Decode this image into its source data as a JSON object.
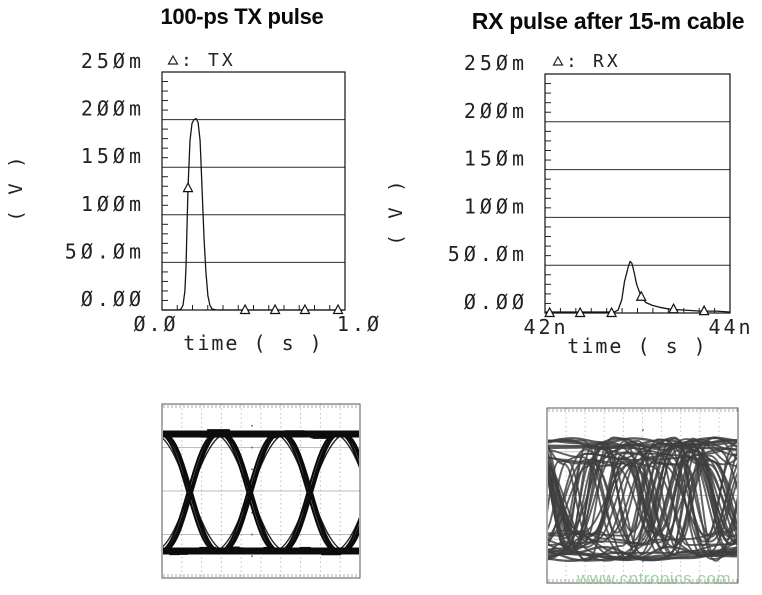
{
  "page": {
    "background": "#ffffff"
  },
  "titles": {
    "tx": "100-ps TX pulse",
    "rx": "RX pulse after 15-m cable"
  },
  "watermark": {
    "text": "www.cntronics.com",
    "color": "#9bcf9e"
  },
  "chart_data": [
    {
      "id": "tx_pulse",
      "type": "line",
      "title": "100-ps TX pulse",
      "legend": [
        {
          "marker": "triangle-outline",
          "label": "TX"
        }
      ],
      "legend_separator": ":",
      "xlabel": "time ( s )",
      "ylabel": "( V )",
      "xlim_ns": [
        0,
        1.0
      ],
      "ylim_mV": [
        0,
        250
      ],
      "xticks": [
        {
          "v": 0,
          "label": "0.0"
        },
        {
          "v": 1.0,
          "label": "1.0n"
        }
      ],
      "yticks": [
        {
          "v": 0,
          "label": "0.00"
        },
        {
          "v": 50,
          "label": "50.0m"
        },
        {
          "v": 100,
          "label": "100m"
        },
        {
          "v": 150,
          "label": "150m"
        },
        {
          "v": 200,
          "label": "200m"
        },
        {
          "v": 250,
          "label": "250m"
        }
      ],
      "grid": "horizontal-solid",
      "zero_glyph_slashed": true,
      "series": [
        {
          "name": "TX",
          "x_ns": [
            0,
            0.09,
            0.104,
            0.115,
            0.125,
            0.131,
            0.142,
            0.153,
            0.164,
            0.175,
            0.186,
            0.197,
            0.208,
            0.219,
            0.23,
            0.24,
            0.251,
            0.262,
            0.273,
            0.3,
            0.45,
            0.62,
            0.78,
            0.96,
            1.0
          ],
          "v_mV": [
            0,
            0,
            1,
            5,
            20,
            45,
            128,
            178,
            196,
            200,
            201,
            197,
            178,
            126,
            74,
            40,
            15,
            5,
            1,
            0,
            0,
            0,
            0,
            0,
            0
          ],
          "markers_t_v": [
            [
              0.142,
              128
            ],
            [
              0.454,
              0
            ],
            [
              0.618,
              0
            ],
            [
              0.781,
              0
            ],
            [
              0.962,
              0
            ]
          ]
        }
      ]
    },
    {
      "id": "rx_pulse",
      "type": "line",
      "title": "RX pulse after 15-m cable",
      "legend": [
        {
          "marker": "triangle-outline",
          "label": "RX"
        }
      ],
      "legend_separator": ":",
      "xlabel": "time ( s )",
      "ylabel": "( V )",
      "xlim_ns": [
        42,
        44
      ],
      "ylim_mV": [
        0,
        250
      ],
      "xticks": [
        {
          "v": 42,
          "label": "42n"
        },
        {
          "v": 44,
          "label": "44n"
        }
      ],
      "yticks": [
        {
          "v": 0,
          "label": "0.00"
        },
        {
          "v": 50,
          "label": "50.0m"
        },
        {
          "v": 100,
          "label": "100m"
        },
        {
          "v": 150,
          "label": "150m"
        },
        {
          "v": 200,
          "label": "200m"
        },
        {
          "v": 250,
          "label": "250m"
        }
      ],
      "grid": "horizontal-solid",
      "zero_glyph_slashed": true,
      "series": [
        {
          "name": "RX",
          "x_ns": [
            42,
            42.6,
            42.75,
            42.79,
            42.83,
            42.86,
            42.9,
            42.92,
            42.94,
            42.96,
            42.99,
            43.04,
            43.09,
            43.16,
            43.24,
            43.35,
            43.51,
            43.68,
            43.85,
            44
          ],
          "v_mV": [
            1,
            1,
            1,
            3,
            14,
            33,
            48,
            54,
            52,
            44,
            30,
            17,
            11,
            8,
            6,
            4,
            3,
            2,
            2,
            1
          ],
          "markers_t_v": [
            [
              42.05,
              0
            ],
            [
              42.38,
              0
            ],
            [
              42.72,
              0
            ],
            [
              43.04,
              17
            ],
            [
              43.39,
              4
            ],
            [
              43.72,
              2
            ]
          ]
        }
      ]
    },
    {
      "id": "tx_eye",
      "type": "eye_diagram",
      "state": "open",
      "description": "Oscilloscope eye diagram of the TX signal: wide-open NRZ eye, three crossings visible, thick flat top and bottom rails",
      "visible_crossings": 3,
      "trace_color": "#0c0c0c",
      "grid_color": "#bdbdbd",
      "seed": 5
    },
    {
      "id": "rx_eye",
      "type": "eye_diagram",
      "state": "closed",
      "description": "Oscilloscope eye diagram after the 15-m cable: eye completely closed by inter-symbol interference, dense mesh of overlapping traces",
      "visible_crossings": 0,
      "trace_color": "#3e3e3e",
      "grid_color": "#c4c4c4",
      "seed": 13,
      "watermark": "www.cntronics.com"
    }
  ]
}
